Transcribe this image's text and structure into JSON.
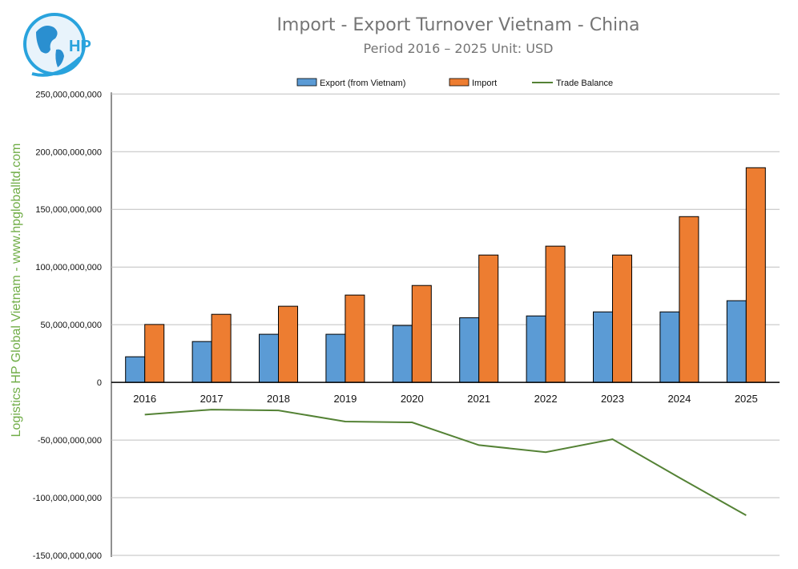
{
  "chart_data": {
    "type": "bar",
    "title": "Import - Export Turnover Vietnam - China",
    "subtitle": "Period 2016 – 2025  Unit: USD",
    "side_label": "Logistics HP Global Vietnam - www.hpgloballtd.com",
    "logo_text": "HP",
    "categories": [
      "2016",
      "2017",
      "2018",
      "2019",
      "2020",
      "2021",
      "2022",
      "2023",
      "2024",
      "2025"
    ],
    "series": [
      {
        "name": "Export (from Vietnam)",
        "type": "bar",
        "color": "#5b9bd5",
        "values": [
          22200000000.0,
          35400000000.0,
          41700000000.0,
          41700000000.0,
          49300000000.0,
          56000000000.0,
          57600000000.0,
          61100000000.0,
          61100000000.0,
          70800000000.0
        ]
      },
      {
        "name": "Import",
        "type": "bar",
        "color": "#ed7d31",
        "values": [
          50200000000.0,
          59000000000.0,
          66000000000.0,
          75700000000.0,
          84000000000.0,
          110400000000.0,
          118100000000.0,
          110400000000.0,
          143700000000.0,
          186100000000.0
        ]
      },
      {
        "name": "Trade Balance",
        "type": "line",
        "color": "#548235",
        "values": [
          -28000000000.0,
          -23600000000.0,
          -24300000000.0,
          -34000000000.0,
          -34700000000.0,
          -54400000000.0,
          -60500000000.0,
          -49300000000.0,
          -82600000000.0,
          -115300000000.0
        ]
      }
    ],
    "ylim": [
      -150000000000.0,
      250000000000.0
    ],
    "yticks": [
      250000000000.0,
      200000000000.0,
      150000000000.0,
      100000000000.0,
      50000000000.0,
      0,
      -50000000000.0,
      -100000000000.0,
      -150000000000.0
    ],
    "ytick_labels": [
      "250,000,000,000",
      "200,000,000,000",
      "150,000,000,000",
      "100,000,000,000",
      "50,000,000,000",
      "0",
      "-50,000,000,000",
      "-100,000,000,000",
      "-150,000,000,000"
    ],
    "grid": true,
    "legend": "top"
  }
}
